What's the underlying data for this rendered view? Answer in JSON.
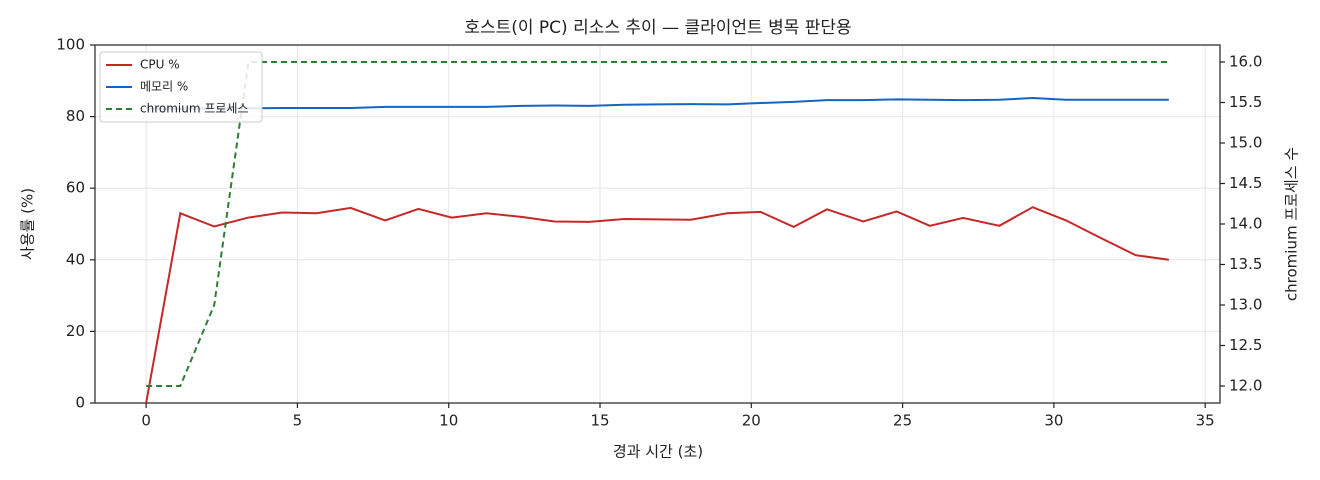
{
  "chart_data": {
    "type": "line",
    "title": "호스트(이 PC) 리소스 추이 — 클라이언트 병목 판단용",
    "x_label": "경과 시간 (초)",
    "y_label": "사용률 (%)",
    "y2_label": "chromium 프로세스 수",
    "x": [
      0,
      1.13,
      2.25,
      3.38,
      4.5,
      5.63,
      6.76,
      7.9,
      9.0,
      10.1,
      11.25,
      12.4,
      13.5,
      14.65,
      15.8,
      16.9,
      18.0,
      19.2,
      20.3,
      21.4,
      22.5,
      23.7,
      24.8,
      25.9,
      27.0,
      28.2,
      29.3,
      30.4,
      31.5,
      32.7,
      33.8
    ],
    "series": [
      {
        "name": "CPU %",
        "color": "#c62828",
        "style": "solid",
        "values": [
          0,
          53,
          49.3,
          51.8,
          53.2,
          53,
          54.5,
          51,
          54.2,
          51.8,
          53,
          52,
          50.7,
          50.6,
          51.4,
          51.3,
          51.2,
          53,
          53.4,
          49.2,
          54.1,
          50.7,
          53.5,
          49.5,
          51.7,
          49.5,
          54.7,
          51,
          46.3,
          41.3,
          40
        ]
      },
      {
        "name": "메모리 %",
        "color": "#1565c0",
        "style": "solid",
        "values": [
          82.2,
          82.2,
          82.3,
          82.3,
          82.4,
          82.4,
          82.4,
          82.7,
          82.7,
          82.7,
          82.7,
          83,
          83.1,
          83,
          83.3,
          83.4,
          83.5,
          83.4,
          83.8,
          84.1,
          84.6,
          84.6,
          84.8,
          84.7,
          84.6,
          84.7,
          85.2,
          84.7,
          84.7,
          84.7,
          84.7
        ]
      },
      {
        "name": "chromium 프로세스",
        "color": "#2e7d32",
        "style": "dashed",
        "axis": "y2",
        "values": [
          12,
          12,
          13,
          16,
          16,
          16,
          16,
          16,
          16,
          16,
          16,
          16,
          16,
          16,
          16,
          16,
          16,
          16,
          16,
          16,
          16,
          16,
          16,
          16,
          16,
          16,
          16,
          16,
          16,
          16,
          16
        ]
      }
    ],
    "xlim": [
      -1.69,
      35.49
    ],
    "xticks": [
      0,
      5,
      10,
      15,
      20,
      25,
      30,
      35
    ],
    "ylim": [
      0,
      100
    ],
    "yticks": [
      0,
      20,
      40,
      60,
      80,
      100
    ],
    "y2lim": [
      11.79,
      16.21
    ],
    "y2ticks": [
      {
        "value": 12,
        "label": "12.0"
      },
      {
        "value": 12.5,
        "label": "12.5"
      },
      {
        "value": 13,
        "label": "13.0"
      },
      {
        "value": 13.5,
        "label": "13.5"
      },
      {
        "value": 14,
        "label": "14.0"
      },
      {
        "value": 14.5,
        "label": "14.5"
      },
      {
        "value": 15,
        "label": "15.0"
      },
      {
        "value": 15.5,
        "label": "15.5"
      },
      {
        "value": 16,
        "label": "16.0"
      }
    ],
    "grid": true,
    "legend": "upper-left"
  }
}
